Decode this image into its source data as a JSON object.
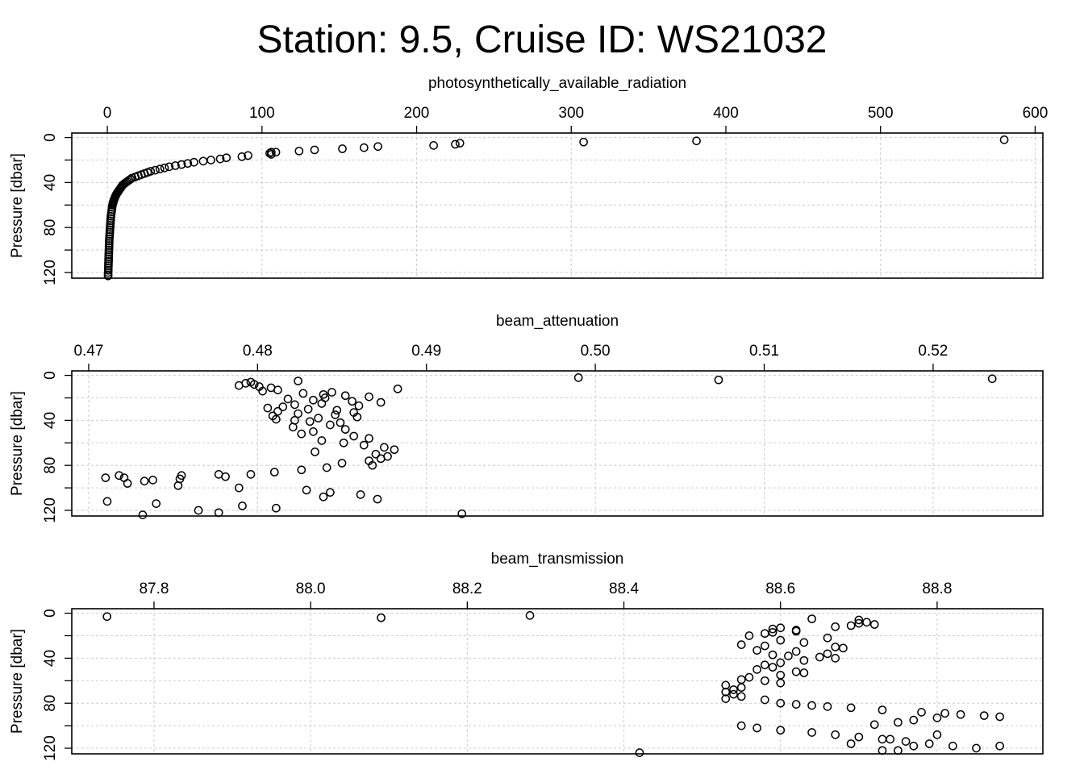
{
  "title": "Station: 9.5, Cruise ID: WS21032",
  "chart_data": [
    {
      "type": "scatter",
      "xlabel": "photosynthetically_available_radiation",
      "ylabel": "Pressure [dbar]",
      "xlim": [
        -23,
        605
      ],
      "ylim": [
        125,
        -4
      ],
      "xticks": [
        0,
        100,
        200,
        300,
        400,
        500,
        600
      ],
      "yticks": [
        0,
        20,
        40,
        60,
        80,
        100,
        120
      ],
      "yticklabels": [
        "0",
        "",
        "40",
        "",
        "80",
        "",
        "120"
      ],
      "grid": true,
      "points": [
        [
          580,
          2
        ],
        [
          381,
          3
        ],
        [
          308,
          4
        ],
        [
          228,
          5
        ],
        [
          225,
          6
        ],
        [
          211,
          7
        ],
        [
          175,
          8
        ],
        [
          166,
          9
        ],
        [
          152,
          10
        ],
        [
          134,
          11
        ],
        [
          124,
          12
        ],
        [
          109,
          13
        ],
        [
          106,
          13
        ],
        [
          105,
          14
        ],
        [
          106,
          15
        ],
        [
          91,
          16
        ],
        [
          87,
          17
        ],
        [
          77,
          18
        ],
        [
          73,
          19
        ],
        [
          67,
          20
        ],
        [
          62,
          21
        ],
        [
          56,
          22
        ],
        [
          52,
          23
        ],
        [
          48,
          24
        ],
        [
          44,
          25
        ],
        [
          40,
          26
        ],
        [
          37,
          27
        ],
        [
          34,
          28
        ],
        [
          31,
          29
        ],
        [
          28,
          30
        ],
        [
          26,
          31
        ],
        [
          24,
          32
        ],
        [
          22,
          33
        ],
        [
          20,
          34
        ],
        [
          18,
          35
        ],
        [
          16,
          36
        ],
        [
          15,
          37
        ],
        [
          14,
          38
        ],
        [
          13,
          39
        ],
        [
          12,
          40
        ],
        [
          11,
          41
        ],
        [
          10,
          42
        ],
        [
          9.5,
          43
        ],
        [
          9,
          44
        ],
        [
          8.5,
          45
        ],
        [
          8,
          46
        ],
        [
          7.5,
          47
        ],
        [
          7,
          48
        ],
        [
          6.5,
          49
        ],
        [
          6,
          50
        ],
        [
          5.6,
          51
        ],
        [
          5.3,
          52
        ],
        [
          5,
          53
        ],
        [
          4.7,
          54
        ],
        [
          4.4,
          55
        ],
        [
          4.1,
          56
        ],
        [
          3.9,
          57
        ],
        [
          3.7,
          58
        ],
        [
          3.5,
          59
        ],
        [
          3.3,
          60
        ],
        [
          3.1,
          62
        ],
        [
          2.9,
          64
        ],
        [
          2.7,
          66
        ],
        [
          2.5,
          68
        ],
        [
          2.3,
          70
        ],
        [
          2.2,
          72
        ],
        [
          2.1,
          74
        ],
        [
          2.0,
          76
        ],
        [
          1.9,
          78
        ],
        [
          1.8,
          80
        ],
        [
          1.7,
          82
        ],
        [
          1.6,
          84
        ],
        [
          1.5,
          86
        ],
        [
          1.4,
          88
        ],
        [
          1.3,
          90
        ],
        [
          1.2,
          92
        ],
        [
          1.2,
          94
        ],
        [
          1.1,
          96
        ],
        [
          1.1,
          98
        ],
        [
          1.0,
          100
        ],
        [
          1.0,
          102
        ],
        [
          0.9,
          104
        ],
        [
          0.9,
          106
        ],
        [
          0.8,
          108
        ],
        [
          0.8,
          110
        ],
        [
          0.7,
          112
        ],
        [
          0.7,
          114
        ],
        [
          0.6,
          116
        ],
        [
          0.6,
          118
        ],
        [
          0.5,
          120
        ],
        [
          0.5,
          122
        ],
        [
          0.5,
          123
        ]
      ]
    },
    {
      "type": "scatter",
      "xlabel": "beam_attenuation",
      "ylabel": "Pressure [dbar]",
      "xlim": [
        0.469,
        0.5265
      ],
      "ylim": [
        125,
        -4
      ],
      "xticks": [
        0.47,
        0.48,
        0.49,
        0.5,
        0.51,
        0.52
      ],
      "xticklabels": [
        "0.47",
        "0.48",
        "0.49",
        "0.50",
        "0.51",
        "0.52"
      ],
      "yticks": [
        0,
        20,
        40,
        60,
        80,
        100,
        120
      ],
      "yticklabels": [
        "0",
        "",
        "40",
        "",
        "80",
        "",
        "120"
      ],
      "grid": true,
      "points": [
        [
          0.5235,
          3
        ],
        [
          0.499,
          2
        ],
        [
          0.5073,
          4
        ],
        [
          0.4824,
          5
        ],
        [
          0.4796,
          6
        ],
        [
          0.4793,
          7
        ],
        [
          0.4798,
          8
        ],
        [
          0.4789,
          9
        ],
        [
          0.4801,
          10
        ],
        [
          0.4808,
          11
        ],
        [
          0.4883,
          12
        ],
        [
          0.4812,
          13
        ],
        [
          0.4803,
          14
        ],
        [
          0.4844,
          15
        ],
        [
          0.4827,
          16
        ],
        [
          0.4839,
          17
        ],
        [
          0.4852,
          18
        ],
        [
          0.4866,
          19
        ],
        [
          0.484,
          20
        ],
        [
          0.4818,
          21
        ],
        [
          0.4833,
          22
        ],
        [
          0.4856,
          23
        ],
        [
          0.4873,
          24
        ],
        [
          0.4838,
          25
        ],
        [
          0.4822,
          26
        ],
        [
          0.486,
          27
        ],
        [
          0.4815,
          28
        ],
        [
          0.4806,
          29
        ],
        [
          0.483,
          30
        ],
        [
          0.4847,
          31
        ],
        [
          0.4812,
          32
        ],
        [
          0.4857,
          33
        ],
        [
          0.4824,
          34
        ],
        [
          0.4846,
          35
        ],
        [
          0.4809,
          36
        ],
        [
          0.4859,
          37
        ],
        [
          0.4836,
          38
        ],
        [
          0.4811,
          39
        ],
        [
          0.4822,
          40
        ],
        [
          0.4831,
          41
        ],
        [
          0.4849,
          42
        ],
        [
          0.4843,
          44
        ],
        [
          0.4821,
          46
        ],
        [
          0.4852,
          48
        ],
        [
          0.4833,
          50
        ],
        [
          0.4826,
          52
        ],
        [
          0.4857,
          54
        ],
        [
          0.4866,
          56
        ],
        [
          0.4838,
          58
        ],
        [
          0.4851,
          60
        ],
        [
          0.4863,
          62
        ],
        [
          0.4875,
          64
        ],
        [
          0.4881,
          66
        ],
        [
          0.4834,
          68
        ],
        [
          0.487,
          70
        ],
        [
          0.4877,
          72
        ],
        [
          0.4873,
          74
        ],
        [
          0.4866,
          76
        ],
        [
          0.485,
          78
        ],
        [
          0.4868,
          80
        ],
        [
          0.4841,
          82
        ],
        [
          0.4826,
          84
        ],
        [
          0.481,
          86
        ],
        [
          0.4796,
          88
        ],
        [
          0.4781,
          90
        ],
        [
          0.4754,
          92
        ],
        [
          0.4733,
          94
        ],
        [
          0.4723,
          96
        ],
        [
          0.4753,
          98
        ],
        [
          0.4789,
          100
        ],
        [
          0.4829,
          102
        ],
        [
          0.4843,
          104
        ],
        [
          0.4861,
          106
        ],
        [
          0.4839,
          108
        ],
        [
          0.4871,
          110
        ],
        [
          0.4711,
          112
        ],
        [
          0.474,
          114
        ],
        [
          0.4791,
          116
        ],
        [
          0.4811,
          118
        ],
        [
          0.4765,
          120
        ],
        [
          0.4777,
          122
        ],
        [
          0.4732,
          124
        ],
        [
          0.4921,
          123
        ],
        [
          0.471,
          91
        ],
        [
          0.4718,
          89
        ],
        [
          0.4721,
          91
        ],
        [
          0.4738,
          93
        ],
        [
          0.4755,
          89
        ],
        [
          0.4777,
          88
        ]
      ]
    },
    {
      "type": "scatter",
      "xlabel": "beam_transmission",
      "ylabel": "Pressure [dbar]",
      "xlim": [
        87.695,
        88.935
      ],
      "ylim": [
        125,
        -4
      ],
      "xticks": [
        87.8,
        88.0,
        88.2,
        88.4,
        88.6,
        88.8
      ],
      "xticklabels": [
        "87.8",
        "88.0",
        "88.2",
        "88.4",
        "88.6",
        "88.8"
      ],
      "yticks": [
        0,
        20,
        40,
        60,
        80,
        100,
        120
      ],
      "yticklabels": [
        "0",
        "",
        "40",
        "",
        "80",
        "",
        "120"
      ],
      "grid": true,
      "points": [
        [
          87.74,
          3
        ],
        [
          88.09,
          4
        ],
        [
          88.28,
          2
        ],
        [
          88.64,
          5
        ],
        [
          88.7,
          6
        ],
        [
          88.71,
          8
        ],
        [
          88.72,
          10
        ],
        [
          88.7,
          9
        ],
        [
          88.69,
          11
        ],
        [
          88.67,
          12
        ],
        [
          88.6,
          13
        ],
        [
          88.59,
          14
        ],
        [
          88.62,
          15
        ],
        [
          88.62,
          16
        ],
        [
          88.59,
          17
        ],
        [
          88.58,
          18
        ],
        [
          88.56,
          20
        ],
        [
          88.66,
          22
        ],
        [
          88.6,
          24
        ],
        [
          88.63,
          26
        ],
        [
          88.55,
          28
        ],
        [
          88.58,
          29
        ],
        [
          88.67,
          30
        ],
        [
          88.68,
          31
        ],
        [
          88.57,
          33
        ],
        [
          88.62,
          34
        ],
        [
          88.66,
          36
        ],
        [
          88.59,
          37
        ],
        [
          88.61,
          38
        ],
        [
          88.65,
          39
        ],
        [
          88.67,
          40
        ],
        [
          88.63,
          42
        ],
        [
          88.6,
          44
        ],
        [
          88.58,
          46
        ],
        [
          88.59,
          48
        ],
        [
          88.57,
          50
        ],
        [
          88.62,
          52
        ],
        [
          88.63,
          53
        ],
        [
          88.6,
          55
        ],
        [
          88.56,
          57
        ],
        [
          88.55,
          59
        ],
        [
          88.58,
          60
        ],
        [
          88.6,
          62
        ],
        [
          88.53,
          64
        ],
        [
          88.55,
          66
        ],
        [
          88.54,
          68
        ],
        [
          88.53,
          70
        ],
        [
          88.54,
          72
        ],
        [
          88.55,
          74
        ],
        [
          88.53,
          76
        ],
        [
          88.58,
          77
        ],
        [
          88.6,
          80
        ],
        [
          88.62,
          81
        ],
        [
          88.64,
          82
        ],
        [
          88.66,
          83
        ],
        [
          88.69,
          84
        ],
        [
          88.73,
          86
        ],
        [
          88.78,
          88
        ],
        [
          88.81,
          89
        ],
        [
          88.83,
          90
        ],
        [
          88.86,
          91
        ],
        [
          88.88,
          92
        ],
        [
          88.8,
          93
        ],
        [
          88.77,
          95
        ],
        [
          88.75,
          97
        ],
        [
          88.72,
          99
        ],
        [
          88.55,
          100
        ],
        [
          88.57,
          102
        ],
        [
          88.6,
          104
        ],
        [
          88.64,
          106
        ],
        [
          88.67,
          108
        ],
        [
          88.7,
          110
        ],
        [
          88.74,
          112
        ],
        [
          88.76,
          114
        ],
        [
          88.79,
          116
        ],
        [
          88.82,
          118
        ],
        [
          88.85,
          120
        ],
        [
          88.73,
          122
        ],
        [
          88.42,
          124
        ],
        [
          88.88,
          118
        ],
        [
          88.77,
          118
        ],
        [
          88.75,
          122
        ],
        [
          88.8,
          108
        ],
        [
          88.73,
          112
        ],
        [
          88.69,
          116
        ]
      ]
    }
  ]
}
